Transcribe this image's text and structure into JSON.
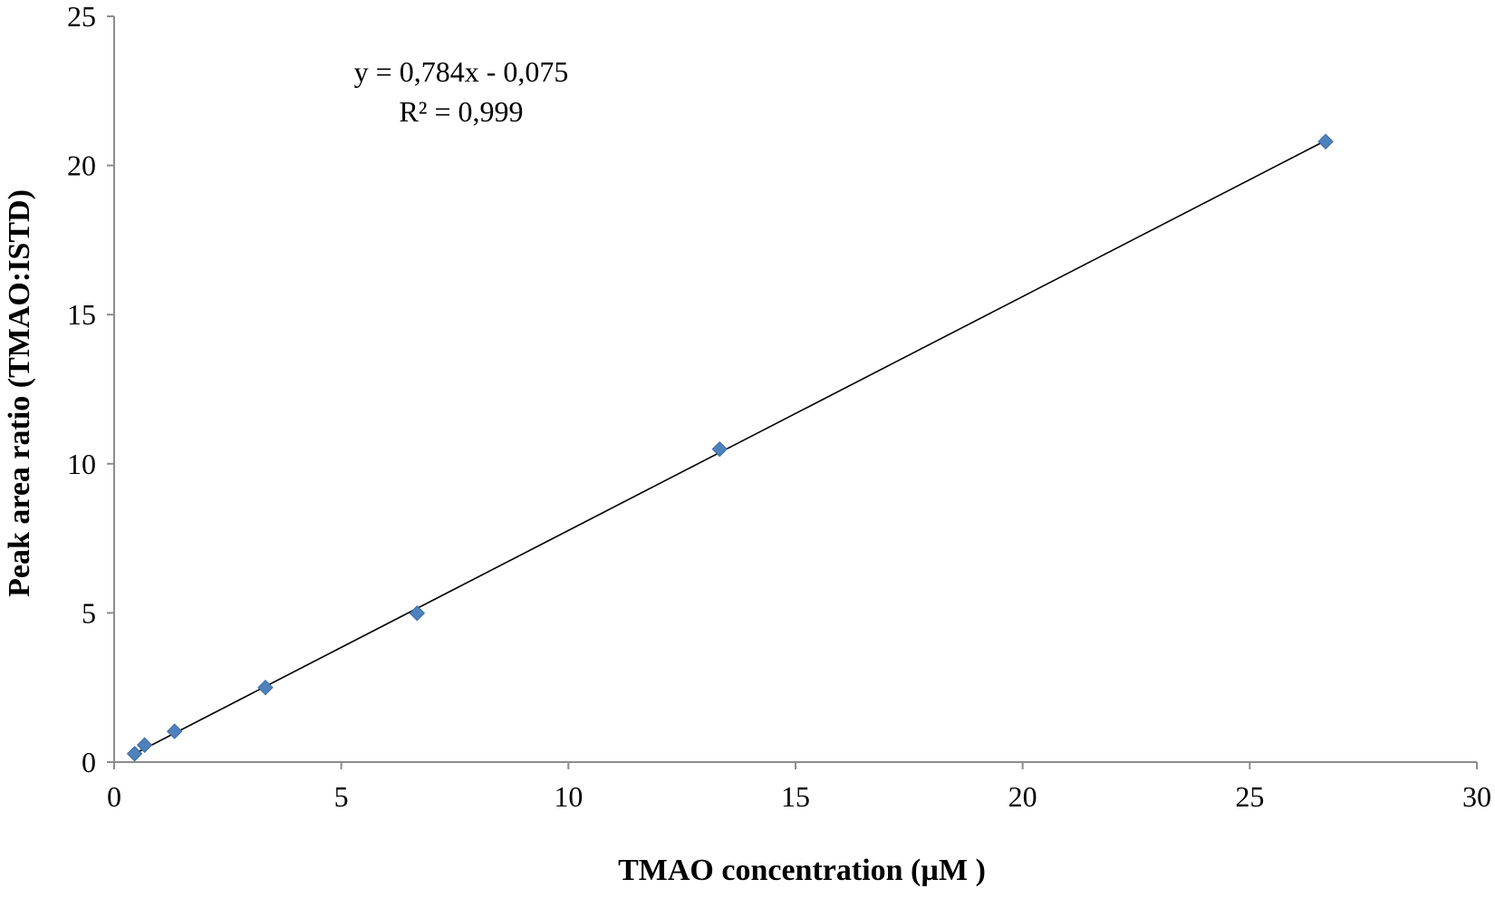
{
  "chart_data": {
    "type": "scatter",
    "title": "",
    "xlabel": "TMAO concentration (µM )",
    "ylabel": "Peak area ratio (TMAO:ISTD)",
    "xlim": [
      0,
      30
    ],
    "ylim": [
      0,
      25
    ],
    "x_ticks": [
      0,
      5,
      10,
      15,
      20,
      25,
      30
    ],
    "y_ticks": [
      0,
      5,
      10,
      15,
      20,
      25
    ],
    "x_tick_labels": [
      "0",
      "5",
      "10",
      "15",
      "20",
      "25",
      "30"
    ],
    "y_tick_labels": [
      "0",
      "5",
      "10",
      "15",
      "20",
      "25"
    ],
    "grid": false,
    "legend": "none",
    "series": [
      {
        "marker": "diamond",
        "color": "#4F81BD",
        "x": [
          0.45,
          0.67,
          1.33,
          3.33,
          6.67,
          13.33,
          26.67
        ],
        "y": [
          0.28,
          0.57,
          1.03,
          2.5,
          4.99,
          10.49,
          20.8
        ]
      }
    ],
    "trendline": {
      "type": "linear",
      "slope": 0.784,
      "intercept": -0.075,
      "x_range": [
        0.45,
        26.67
      ],
      "color": "#000000"
    },
    "annotations": {
      "equation": "y = 0,784x - 0,075",
      "r_squared": "R² = 0,999"
    }
  }
}
